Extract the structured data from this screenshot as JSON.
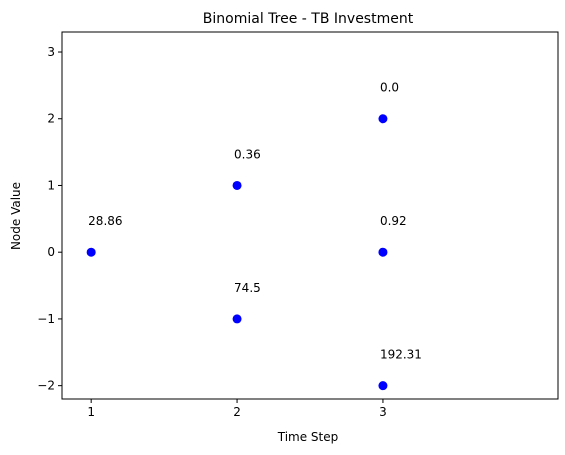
{
  "chart_data": {
    "type": "scatter",
    "title": "Binomial Tree - TB Investment",
    "xlabel": "Time Step",
    "ylabel": "Node Value",
    "xlim": [
      0.8,
      4.2
    ],
    "ylim": [
      -2.2,
      3.3
    ],
    "xticks": [
      1,
      2,
      3
    ],
    "yticks": [
      -2,
      -1,
      0,
      1,
      2,
      3
    ],
    "ytick_labels": [
      "−2",
      "−1",
      "0",
      "1",
      "2",
      "3"
    ],
    "grid": false,
    "marker_color": "#0000ff",
    "points": [
      {
        "x": 1,
        "y": 0,
        "label": "28.86"
      },
      {
        "x": 2,
        "y": 1,
        "label": "0.36"
      },
      {
        "x": 2,
        "y": -1,
        "label": "74.5"
      },
      {
        "x": 3,
        "y": 2,
        "label": "0.0"
      },
      {
        "x": 3,
        "y": 0,
        "label": "0.92"
      },
      {
        "x": 3,
        "y": -2,
        "label": "192.31"
      }
    ]
  }
}
